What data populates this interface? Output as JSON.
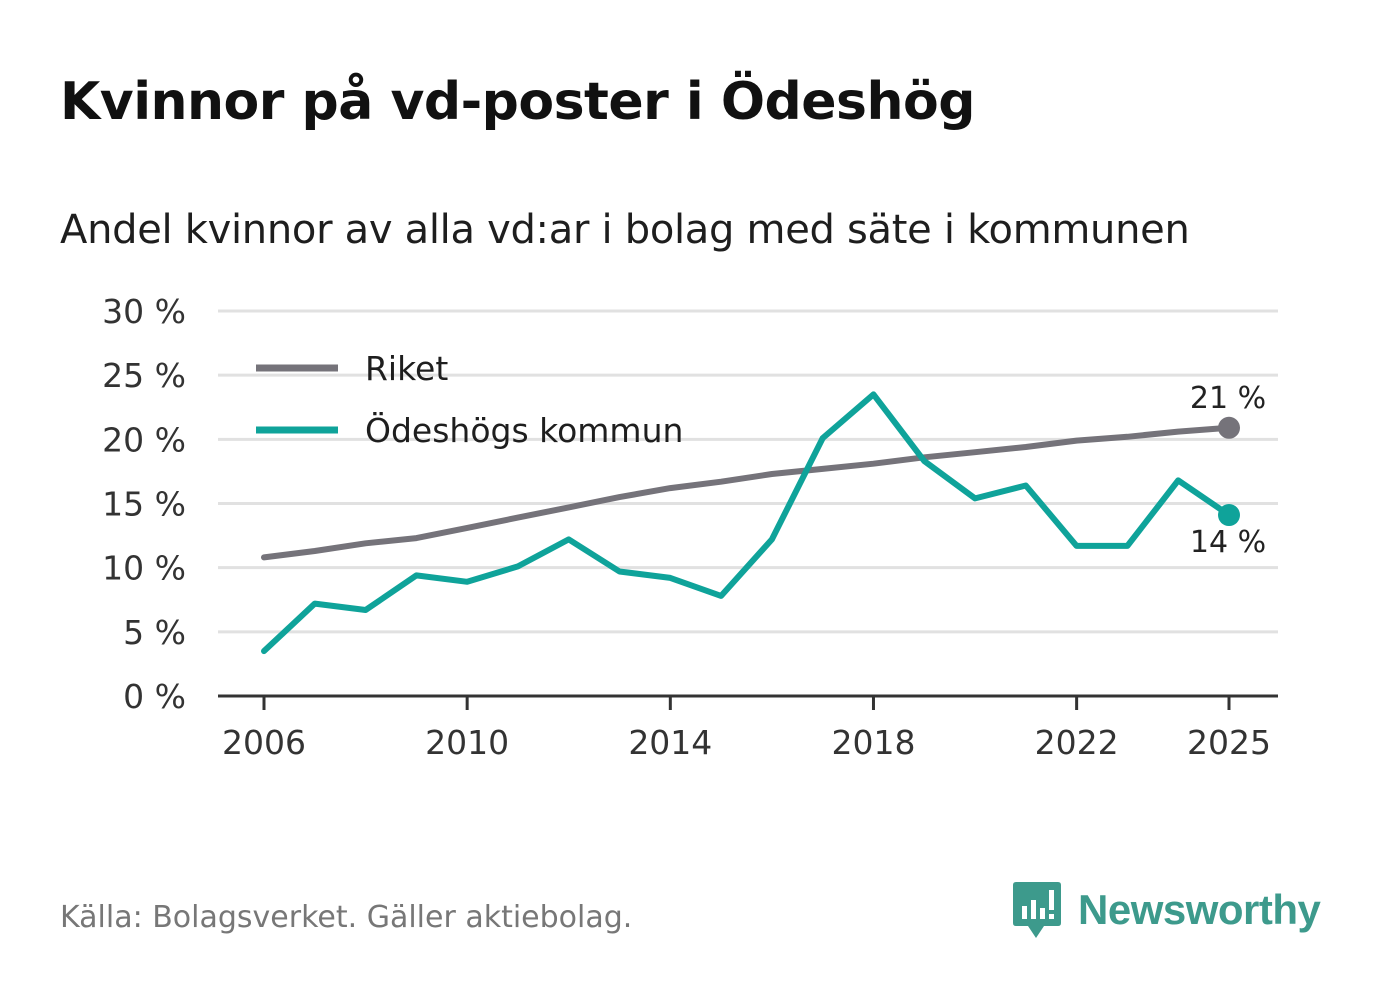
{
  "title": "Kvinnor på vd-poster i Ödeshög",
  "subtitle": "Andel kvinnor av alla vd:ar i bolag med säte i kommunen",
  "source": "Källa: Bolagsverket. Gäller aktiebolag.",
  "brand": "Newsworthy",
  "colors": {
    "riket": "#75737a",
    "kommun": "#0fa39a",
    "grid": "#e1e1e1",
    "axis": "#333333",
    "brand": "#3d9a8c"
  },
  "chart_data": {
    "type": "line",
    "title": "Kvinnor på vd-poster i Ödeshög",
    "xlabel": "",
    "ylabel": "",
    "ylim": [
      0,
      30
    ],
    "xlim": [
      2006,
      2025
    ],
    "yticks": [
      0,
      5,
      10,
      15,
      20,
      25,
      30
    ],
    "ytick_labels": [
      "0 %",
      "5 %",
      "10 %",
      "15 %",
      "20 %",
      "25 %",
      "30 %"
    ],
    "xticks": [
      2006,
      2010,
      2014,
      2018,
      2022,
      2025
    ],
    "xtick_labels": [
      "2006",
      "2010",
      "2014",
      "2018",
      "2022",
      "2025"
    ],
    "x": [
      2006,
      2007,
      2008,
      2009,
      2010,
      2011,
      2012,
      2013,
      2014,
      2015,
      2016,
      2017,
      2018,
      2019,
      2020,
      2021,
      2022,
      2023,
      2024,
      2025
    ],
    "series": [
      {
        "name": "Riket",
        "key": "riket",
        "values": [
          10.8,
          11.3,
          11.9,
          12.3,
          13.1,
          13.9,
          14.7,
          15.5,
          16.2,
          16.7,
          17.3,
          17.7,
          18.1,
          18.6,
          19.0,
          19.4,
          19.9,
          20.2,
          20.6,
          20.9
        ],
        "end_label": "21 %"
      },
      {
        "name": "Ödeshögs kommun",
        "key": "kommun",
        "values": [
          3.5,
          7.2,
          6.7,
          9.4,
          8.9,
          10.1,
          12.2,
          9.7,
          9.2,
          7.8,
          12.2,
          20.1,
          23.5,
          18.3,
          15.4,
          16.4,
          11.7,
          11.7,
          16.8,
          14.1
        ],
        "end_label": "14 %"
      }
    ],
    "legend": [
      "Riket",
      "Ödeshögs kommun"
    ],
    "legend_position": "top-left",
    "grid": true
  }
}
